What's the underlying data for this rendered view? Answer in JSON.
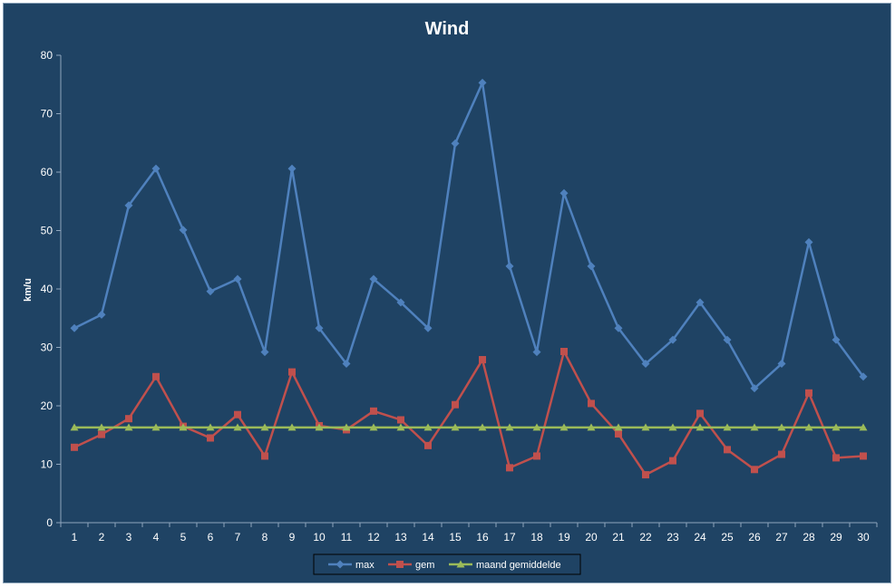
{
  "chart_data": {
    "type": "line",
    "title": "Wind",
    "xlabel": "",
    "ylabel": "km/u",
    "ylim": [
      0,
      80
    ],
    "yticks": [
      0,
      10,
      20,
      30,
      40,
      50,
      60,
      70,
      80
    ],
    "grid": false,
    "legend_position": "bottom",
    "categories": [
      "1",
      "2",
      "3",
      "4",
      "5",
      "6",
      "7",
      "8",
      "9",
      "10",
      "11",
      "12",
      "13",
      "14",
      "15",
      "16",
      "17",
      "18",
      "19",
      "20",
      "21",
      "22",
      "23",
      "24",
      "25",
      "26",
      "27",
      "28",
      "29",
      "30"
    ],
    "series": [
      {
        "name": "max",
        "color": "#4f81bd",
        "marker": "diamond",
        "values": [
          33.3,
          35.6,
          54.3,
          60.6,
          50.1,
          39.6,
          41.7,
          29.2,
          60.6,
          33.3,
          27.2,
          41.7,
          37.7,
          33.3,
          64.9,
          75.3,
          43.9,
          29.2,
          56.4,
          43.9,
          33.3,
          27.2,
          31.3,
          37.7,
          31.3,
          23.0,
          27.2,
          48.0,
          31.3,
          25.0
        ]
      },
      {
        "name": "gem",
        "color": "#c0504d",
        "marker": "square",
        "values": [
          12.9,
          15.1,
          17.8,
          25.0,
          16.5,
          14.5,
          18.5,
          11.4,
          25.8,
          16.6,
          15.9,
          19.1,
          17.6,
          13.2,
          20.2,
          27.9,
          9.4,
          11.4,
          29.3,
          20.4,
          15.2,
          8.2,
          10.6,
          18.7,
          12.5,
          9.1,
          11.7,
          22.2,
          11.1,
          11.4
        ]
      },
      {
        "name": "maand gemiddelde",
        "color": "#9bbb59",
        "marker": "triangle",
        "values": [
          16.3,
          16.3,
          16.3,
          16.3,
          16.3,
          16.3,
          16.3,
          16.3,
          16.3,
          16.3,
          16.3,
          16.3,
          16.3,
          16.3,
          16.3,
          16.3,
          16.3,
          16.3,
          16.3,
          16.3,
          16.3,
          16.3,
          16.3,
          16.3,
          16.3,
          16.3,
          16.3,
          16.3,
          16.3,
          16.3
        ]
      }
    ]
  }
}
